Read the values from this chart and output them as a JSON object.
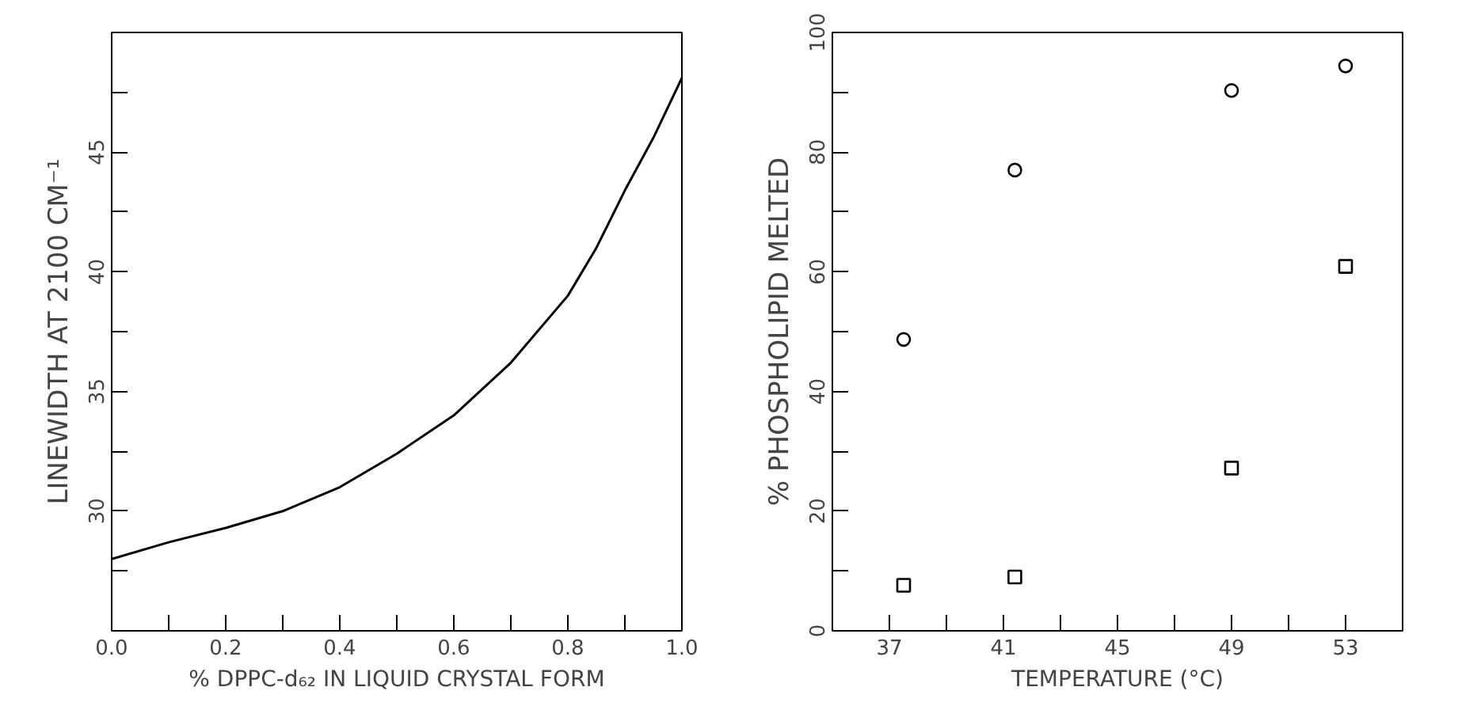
{
  "chart_data": [
    {
      "type": "line",
      "xlabel": "% DPPC-d₆₂ IN LIQUID CRYSTAL FORM",
      "ylabel": "LINEWIDTH AT 2100 CM⁻¹",
      "x": [
        0,
        0.1,
        0.2,
        0.3,
        0.4,
        0.5,
        0.6,
        0.7,
        0.8,
        0.85,
        0.9,
        0.95,
        1.0
      ],
      "series": [
        {
          "color": "#000000",
          "values": [
            28.0,
            28.7,
            29.3,
            30.0,
            31.0,
            32.4,
            34.0,
            36.2,
            39.0,
            41.0,
            43.4,
            45.6,
            48.1
          ]
        }
      ],
      "xlim": [
        0,
        1.0
      ],
      "ylim": [
        25,
        50
      ],
      "xticks": [
        {
          "value": 0,
          "label": "0.0"
        },
        {
          "value": 0.1,
          "label": null
        },
        {
          "value": 0.2,
          "label": "0.2"
        },
        {
          "value": 0.3,
          "label": null
        },
        {
          "value": 0.4,
          "label": "0.4"
        },
        {
          "value": 0.5,
          "label": null
        },
        {
          "value": 0.6,
          "label": "0.6"
        },
        {
          "value": 0.7,
          "label": null
        },
        {
          "value": 0.8,
          "label": "0.8"
        },
        {
          "value": 0.9,
          "label": null
        },
        {
          "value": 1.0,
          "label": "1.0"
        }
      ],
      "yticks": [
        {
          "value": 27.5,
          "label": null
        },
        30,
        {
          "value": 32.5,
          "label": null
        },
        35,
        {
          "value": 37.5,
          "label": null
        },
        40,
        {
          "value": 42.5,
          "label": null
        },
        45,
        {
          "value": 47.5,
          "label": null
        }
      ],
      "grid": false,
      "marker": "none",
      "line_style": "solid"
    },
    {
      "type": "scatter",
      "xlabel": "TEMPERATURE (°C)",
      "ylabel": "% PHOSPHOLIPID MELTED",
      "x": [
        37.5,
        41.4,
        49.0,
        53.0
      ],
      "series": [
        {
          "color": "#000000",
          "marker": "circle",
          "values": [
            48.7,
            77.0,
            90.3,
            94.4
          ]
        },
        {
          "color": "#000000",
          "marker": "square",
          "values": [
            7.6,
            9.0,
            27.2,
            60.9
          ]
        }
      ],
      "xlim": [
        35,
        55
      ],
      "ylim": [
        0,
        100
      ],
      "xticks": [
        37,
        {
          "value": 39,
          "label": null
        },
        41,
        {
          "value": 43,
          "label": null
        },
        45,
        {
          "value": 47,
          "label": null
        },
        49,
        {
          "value": 51,
          "label": null
        },
        53
      ],
      "yticks": [
        0,
        {
          "value": 10,
          "label": null
        },
        20,
        {
          "value": 30,
          "label": null
        },
        40,
        {
          "value": 50,
          "label": null
        },
        60,
        {
          "value": 70,
          "label": null
        },
        80,
        {
          "value": 90,
          "label": null
        },
        100
      ],
      "grid": false
    }
  ]
}
